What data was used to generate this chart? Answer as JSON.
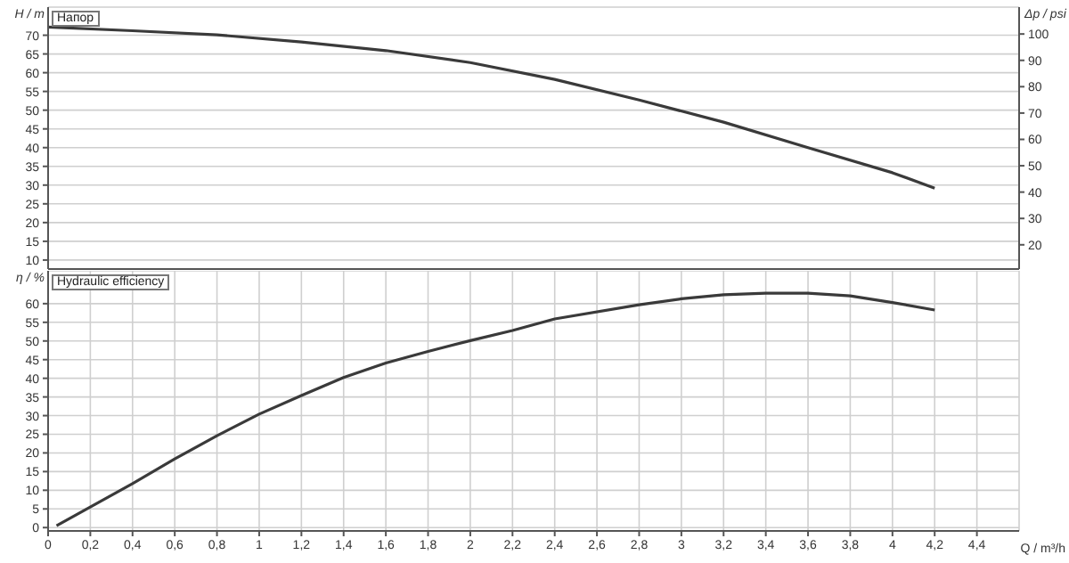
{
  "chart_data": [
    {
      "type": "line",
      "title": "Напор",
      "ylabel": "H / m",
      "y2label": "Δp / psi",
      "xlim": [
        0,
        4.6
      ],
      "xticks": [
        0,
        0.2,
        0.4,
        0.6,
        0.8,
        1,
        1.2,
        1.4,
        1.6,
        1.8,
        2,
        2.2,
        2.4,
        2.6,
        2.8,
        3,
        3.2,
        3.4,
        3.6,
        3.8,
        4,
        4.2,
        4.4
      ],
      "ylim": [
        7.6,
        77.5
      ],
      "yticks": [
        10,
        15,
        20,
        25,
        30,
        35,
        40,
        45,
        50,
        55,
        60,
        65,
        70
      ],
      "y2lim": [
        10.8,
        110.2
      ],
      "y2ticks": [
        20,
        30,
        40,
        50,
        60,
        70,
        80,
        90,
        100
      ],
      "tick_labels": "y",
      "grid": true,
      "marker": "none",
      "line_style": "solid",
      "series": [
        {
          "color": "#3a3a3a",
          "x": [
            0,
            0.4,
            0.8,
            1.2,
            1.6,
            2,
            2.4,
            2.8,
            3.2,
            3.6,
            4,
            4.2
          ],
          "values": [
            72.2,
            71.2,
            70.1,
            68.2,
            65.9,
            62.7,
            58.2,
            52.7,
            46.8,
            40,
            33.3,
            29.2
          ]
        }
      ]
    },
    {
      "type": "line",
      "title": "Hydraulic efficiency",
      "ylabel": "η / %",
      "xlabel": "Q / m³/h",
      "xlim": [
        0,
        4.6
      ],
      "xticks": [
        0,
        {
          "value": 0.2,
          "label": "0,2"
        },
        {
          "value": 0.4,
          "label": "0,4"
        },
        {
          "value": 0.6,
          "label": "0,6"
        },
        {
          "value": 0.8,
          "label": "0,8"
        },
        1,
        {
          "value": 1.2,
          "label": "1,2"
        },
        {
          "value": 1.4,
          "label": "1,4"
        },
        {
          "value": 1.6,
          "label": "1,6"
        },
        {
          "value": 1.8,
          "label": "1,8"
        },
        2,
        {
          "value": 2.2,
          "label": "2,2"
        },
        {
          "value": 2.4,
          "label": "2,4"
        },
        {
          "value": 2.6,
          "label": "2,6"
        },
        {
          "value": 2.8,
          "label": "2,8"
        },
        3,
        {
          "value": 3.2,
          "label": "3,2"
        },
        {
          "value": 3.4,
          "label": "3,4"
        },
        {
          "value": 3.6,
          "label": "3,6"
        },
        {
          "value": 3.8,
          "label": "3,8"
        },
        4,
        {
          "value": 4.2,
          "label": "4,2"
        },
        {
          "value": 4.4,
          "label": "4,4"
        }
      ],
      "ylim": [
        -0.9,
        68.8
      ],
      "yticks": [
        0,
        5,
        10,
        15,
        20,
        25,
        30,
        35,
        40,
        45,
        50,
        55,
        60
      ],
      "grid": true,
      "marker": "none",
      "line_style": "solid",
      "series": [
        {
          "color": "#3a3a3a",
          "x": [
            0.04,
            0.2,
            0.4,
            0.6,
            0.8,
            1,
            1.2,
            1.4,
            1.6,
            1.8,
            2,
            2.2,
            2.4,
            2.8,
            3,
            3.2,
            3.4,
            3.6,
            3.8,
            4,
            4.2
          ],
          "values": [
            0.5,
            5.5,
            11.8,
            18.4,
            24.6,
            30.4,
            35.4,
            40.2,
            44.1,
            47.2,
            50.1,
            52.8,
            55.9,
            59.7,
            61.3,
            62.4,
            62.8,
            62.8,
            62.1,
            60.3,
            58.3
          ]
        }
      ]
    }
  ]
}
